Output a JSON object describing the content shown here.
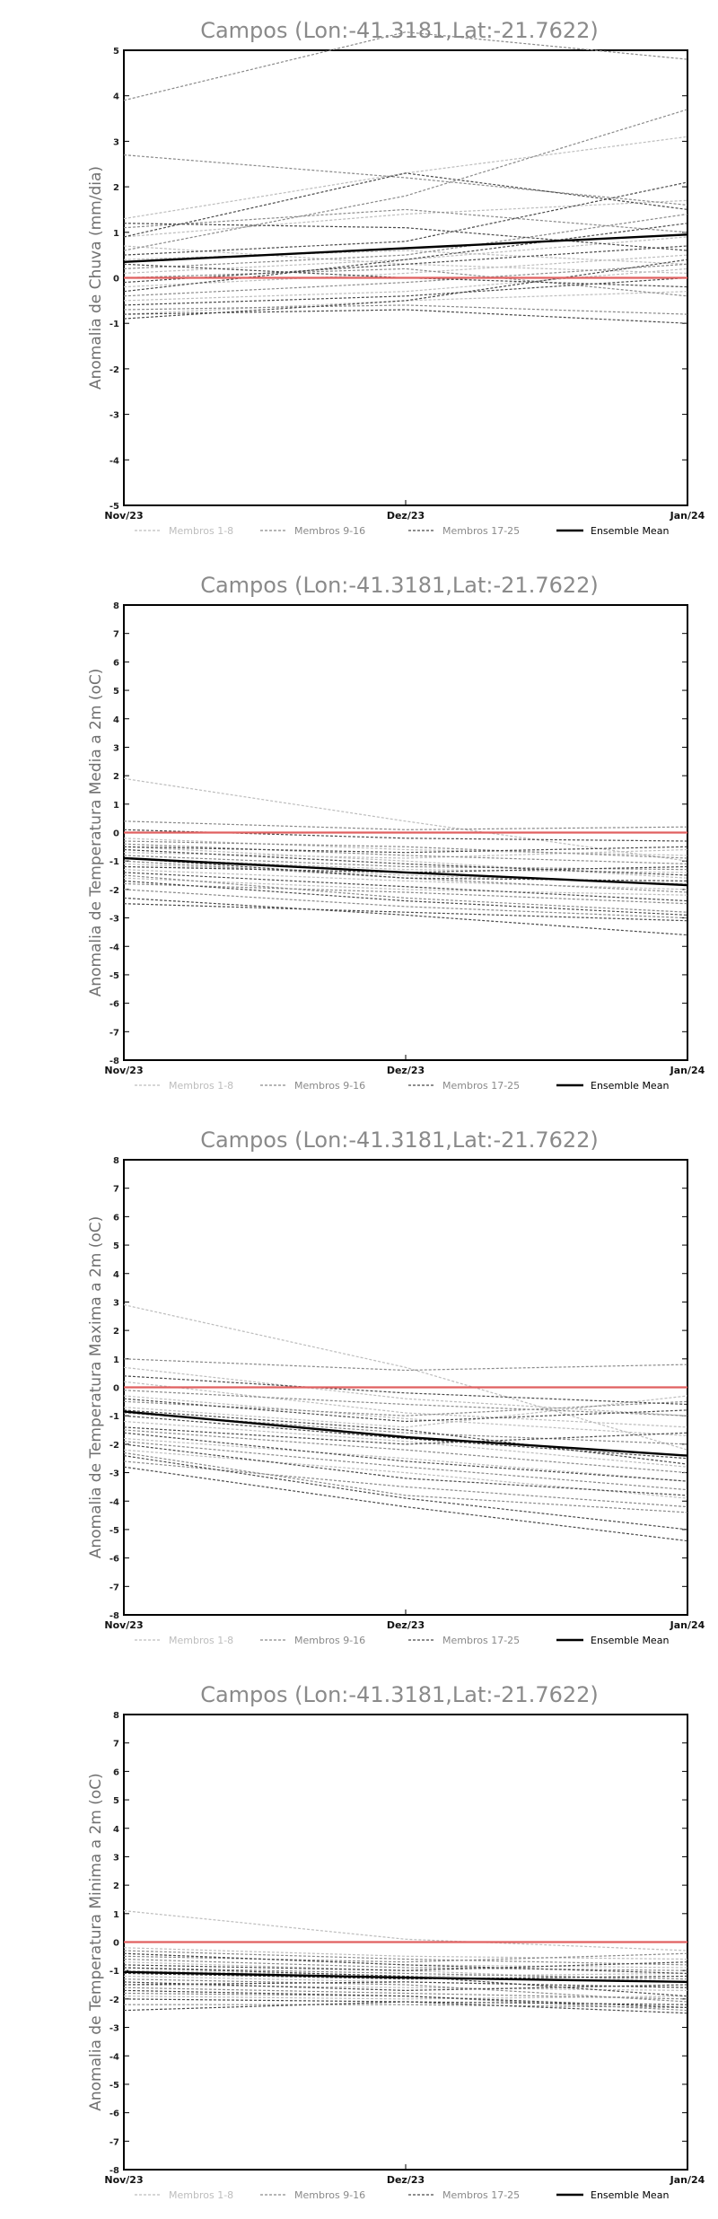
{
  "figure": {
    "colors": {
      "members_1_8": "#bdbdbd",
      "members_9_16": "#8a8a8a",
      "members_17_25": "#4a4a4a",
      "ensemble_mean": "#000000",
      "zero_line": "#e06060"
    }
  },
  "chart_data": [
    {
      "type": "line",
      "title": "Campos (Lon:-41.3181,Lat:-21.7622)",
      "xlabel": "",
      "ylabel": "Anomalia de Chuva (mm/dia)",
      "x": [
        "Nov/23",
        "Dez/23",
        "Jan/24"
      ],
      "ylim": [
        -5,
        5
      ],
      "yticks": [
        -5,
        -4,
        -3,
        -2,
        -1,
        0,
        1,
        2,
        3,
        4,
        5
      ],
      "legend": [
        "Membros 1-8",
        "Membros 9-16",
        "Membros 17-25",
        "Ensemble Mean"
      ],
      "reference_line": 0,
      "series": [
        {
          "name": "Membro 1",
          "group": 1,
          "values": [
            1.3,
            2.3,
            3.1
          ]
        },
        {
          "name": "Membro 2",
          "group": 1,
          "values": [
            0.9,
            1.4,
            1.7
          ]
        },
        {
          "name": "Membro 3",
          "group": 1,
          "values": [
            0.4,
            0.6,
            0.3
          ]
        },
        {
          "name": "Membro 4",
          "group": 1,
          "values": [
            -0.2,
            0.1,
            0.5
          ]
        },
        {
          "name": "Membro 5",
          "group": 1,
          "values": [
            -0.5,
            -0.3,
            0.2
          ]
        },
        {
          "name": "Membro 6",
          "group": 1,
          "values": [
            0.1,
            0.4,
            0.9
          ]
        },
        {
          "name": "Membro 7",
          "group": 1,
          "values": [
            -0.8,
            -0.5,
            -0.3
          ]
        },
        {
          "name": "Membro 8",
          "group": 1,
          "values": [
            0.7,
            0.3,
            0.1
          ]
        },
        {
          "name": "Membro 9",
          "group": 2,
          "values": [
            3.9,
            5.4,
            4.8
          ]
        },
        {
          "name": "Membro 10",
          "group": 2,
          "values": [
            2.7,
            2.2,
            1.6
          ]
        },
        {
          "name": "Membro 11",
          "group": 2,
          "values": [
            1.1,
            1.5,
            1.0
          ]
        },
        {
          "name": "Membro 12",
          "group": 2,
          "values": [
            0.6,
            1.8,
            3.7
          ]
        },
        {
          "name": "Membro 13",
          "group": 2,
          "values": [
            0.2,
            0.5,
            1.4
          ]
        },
        {
          "name": "Membro 14",
          "group": 2,
          "values": [
            -0.4,
            -0.1,
            0.3
          ]
        },
        {
          "name": "Membro 15",
          "group": 2,
          "values": [
            -0.7,
            -0.6,
            -0.8
          ]
        },
        {
          "name": "Membro 16",
          "group": 2,
          "values": [
            0.0,
            0.2,
            -0.4
          ]
        },
        {
          "name": "Membro 17",
          "group": 3,
          "values": [
            0.9,
            2.3,
            1.5
          ]
        },
        {
          "name": "Membro 18",
          "group": 3,
          "values": [
            1.2,
            1.1,
            0.6
          ]
        },
        {
          "name": "Membro 19",
          "group": 3,
          "values": [
            0.5,
            0.8,
            2.1
          ]
        },
        {
          "name": "Membro 20",
          "group": 3,
          "values": [
            -0.3,
            0.4,
            1.2
          ]
        },
        {
          "name": "Membro 21",
          "group": 3,
          "values": [
            -0.6,
            -0.4,
            0.0
          ]
        },
        {
          "name": "Membro 22",
          "group": 3,
          "values": [
            -0.8,
            -0.7,
            -1.0
          ]
        },
        {
          "name": "Membro 23",
          "group": 3,
          "values": [
            0.3,
            0.0,
            -0.2
          ]
        },
        {
          "name": "Membro 24",
          "group": 3,
          "values": [
            -0.1,
            0.3,
            0.7
          ]
        },
        {
          "name": "Membro 25",
          "group": 3,
          "values": [
            -0.9,
            -0.5,
            0.4
          ]
        },
        {
          "name": "Ensemble Mean",
          "group": 4,
          "values": [
            0.35,
            0.65,
            0.95
          ]
        }
      ]
    },
    {
      "type": "line",
      "title": "Campos (Lon:-41.3181,Lat:-21.7622)",
      "xlabel": "",
      "ylabel": "Anomalia de Temperatura Media a 2m (oC)",
      "x": [
        "Nov/23",
        "Dez/23",
        "Jan/24"
      ],
      "ylim": [
        -8,
        8
      ],
      "yticks": [
        -8,
        -7,
        -6,
        -5,
        -4,
        -3,
        -2,
        -1,
        0,
        1,
        2,
        3,
        4,
        5,
        6,
        7,
        8
      ],
      "legend": [
        "Membros 1-8",
        "Membros 9-16",
        "Membros 17-25",
        "Ensemble Mean"
      ],
      "reference_line": 0,
      "series": [
        {
          "name": "Membro 1",
          "group": 1,
          "values": [
            1.9,
            0.4,
            -1.0
          ]
        },
        {
          "name": "Membro 2",
          "group": 1,
          "values": [
            -0.2,
            -0.6,
            -0.8
          ]
        },
        {
          "name": "Membro 3",
          "group": 1,
          "values": [
            -0.9,
            -1.3,
            -1.4
          ]
        },
        {
          "name": "Membro 4",
          "group": 1,
          "values": [
            -1.3,
            -1.7,
            -2.0
          ]
        },
        {
          "name": "Membro 5",
          "group": 1,
          "values": [
            -0.5,
            -1.0,
            -1.6
          ]
        },
        {
          "name": "Membro 6",
          "group": 1,
          "values": [
            -1.6,
            -2.0,
            -2.2
          ]
        },
        {
          "name": "Membro 7",
          "group": 1,
          "values": [
            -0.7,
            -0.9,
            -0.6
          ]
        },
        {
          "name": "Membro 8",
          "group": 1,
          "values": [
            -1.1,
            -1.5,
            -1.8
          ]
        },
        {
          "name": "Membro 9",
          "group": 2,
          "values": [
            0.4,
            0.1,
            0.2
          ]
        },
        {
          "name": "Membro 10",
          "group": 2,
          "values": [
            -0.4,
            -0.8,
            -1.1
          ]
        },
        {
          "name": "Membro 11",
          "group": 2,
          "values": [
            -1.0,
            -1.6,
            -2.1
          ]
        },
        {
          "name": "Membro 12",
          "group": 2,
          "values": [
            -1.5,
            -2.3,
            -2.8
          ]
        },
        {
          "name": "Membro 13",
          "group": 2,
          "values": [
            -2.0,
            -2.6,
            -3.0
          ]
        },
        {
          "name": "Membro 14",
          "group": 2,
          "values": [
            -0.8,
            -1.2,
            -1.3
          ]
        },
        {
          "name": "Membro 15",
          "group": 2,
          "values": [
            -0.3,
            -0.5,
            -0.9
          ]
        },
        {
          "name": "Membro 16",
          "group": 2,
          "values": [
            -1.8,
            -2.1,
            -2.5
          ]
        },
        {
          "name": "Membro 17",
          "group": 3,
          "values": [
            -2.3,
            -2.9,
            -3.6
          ]
        },
        {
          "name": "Membro 18",
          "group": 3,
          "values": [
            -0.6,
            -1.1,
            -1.5
          ]
        },
        {
          "name": "Membro 19",
          "group": 3,
          "values": [
            -1.2,
            -1.4,
            -1.2
          ]
        },
        {
          "name": "Membro 20",
          "group": 3,
          "values": [
            -1.7,
            -2.4,
            -2.9
          ]
        },
        {
          "name": "Membro 21",
          "group": 3,
          "values": [
            -0.5,
            -0.7,
            -0.5
          ]
        },
        {
          "name": "Membro 22",
          "group": 3,
          "values": [
            -2.5,
            -2.8,
            -3.1
          ]
        },
        {
          "name": "Membro 23",
          "group": 3,
          "values": [
            -0.9,
            -1.6,
            -1.7
          ]
        },
        {
          "name": "Membro 24",
          "group": 3,
          "values": [
            -1.4,
            -1.9,
            -2.4
          ]
        },
        {
          "name": "Membro 25",
          "group": 3,
          "values": [
            0.1,
            -0.2,
            -0.3
          ]
        },
        {
          "name": "Ensemble Mean",
          "group": 4,
          "values": [
            -0.9,
            -1.4,
            -1.85
          ]
        }
      ]
    },
    {
      "type": "line",
      "title": "Campos (Lon:-41.3181,Lat:-21.7622)",
      "xlabel": "",
      "ylabel": "Anomalia de Temperatura Maxima a 2m (oC)",
      "x": [
        "Nov/23",
        "Dez/23",
        "Jan/24"
      ],
      "ylim": [
        -8,
        8
      ],
      "yticks": [
        -8,
        -7,
        -6,
        -5,
        -4,
        -3,
        -2,
        -1,
        0,
        1,
        2,
        3,
        4,
        5,
        6,
        7,
        8
      ],
      "legend": [
        "Membros 1-8",
        "Membros 9-16",
        "Membros 17-25",
        "Ensemble Mean"
      ],
      "reference_line": 0,
      "series": [
        {
          "name": "Membro 1",
          "group": 1,
          "values": [
            2.9,
            0.7,
            -2.2
          ]
        },
        {
          "name": "Membro 2",
          "group": 1,
          "values": [
            0.7,
            -0.4,
            -1.0
          ]
        },
        {
          "name": "Membro 3",
          "group": 1,
          "values": [
            -0.3,
            -1.1,
            -1.7
          ]
        },
        {
          "name": "Membro 4",
          "group": 1,
          "values": [
            -1.2,
            -1.9,
            -2.8
          ]
        },
        {
          "name": "Membro 5",
          "group": 1,
          "values": [
            -1.8,
            -2.5,
            -3.3
          ]
        },
        {
          "name": "Membro 6",
          "group": 1,
          "values": [
            -0.7,
            -1.4,
            -0.3
          ]
        },
        {
          "name": "Membro 7",
          "group": 1,
          "values": [
            -2.2,
            -3.0,
            -3.9
          ]
        },
        {
          "name": "Membro 8",
          "group": 1,
          "values": [
            0.2,
            -0.9,
            -1.4
          ]
        },
        {
          "name": "Membro 9",
          "group": 2,
          "values": [
            1.0,
            0.6,
            0.8
          ]
        },
        {
          "name": "Membro 10",
          "group": 2,
          "values": [
            -0.5,
            -1.0,
            -0.5
          ]
        },
        {
          "name": "Membro 11",
          "group": 2,
          "values": [
            -1.5,
            -2.2,
            -3.0
          ]
        },
        {
          "name": "Membro 12",
          "group": 2,
          "values": [
            -2.6,
            -3.5,
            -4.2
          ]
        },
        {
          "name": "Membro 13",
          "group": 2,
          "values": [
            -0.9,
            -1.6,
            -2.0
          ]
        },
        {
          "name": "Membro 14",
          "group": 2,
          "values": [
            -1.9,
            -2.8,
            -3.6
          ]
        },
        {
          "name": "Membro 15",
          "group": 2,
          "values": [
            -0.1,
            -0.6,
            -1.0
          ]
        },
        {
          "name": "Membro 16",
          "group": 2,
          "values": [
            -2.3,
            -3.8,
            -4.4
          ]
        },
        {
          "name": "Membro 17",
          "group": 3,
          "values": [
            -2.8,
            -4.2,
            -5.4
          ]
        },
        {
          "name": "Membro 18",
          "group": 3,
          "values": [
            -1.0,
            -1.8,
            -2.5
          ]
        },
        {
          "name": "Membro 19",
          "group": 3,
          "values": [
            -1.4,
            -2.0,
            -1.6
          ]
        },
        {
          "name": "Membro 20",
          "group": 3,
          "values": [
            -2.0,
            -3.2,
            -3.8
          ]
        },
        {
          "name": "Membro 21",
          "group": 3,
          "values": [
            -0.4,
            -1.2,
            -0.8
          ]
        },
        {
          "name": "Membro 22",
          "group": 3,
          "values": [
            -2.4,
            -3.9,
            -5.0
          ]
        },
        {
          "name": "Membro 23",
          "group": 3,
          "values": [
            0.4,
            -0.2,
            -0.6
          ]
        },
        {
          "name": "Membro 24",
          "group": 3,
          "values": [
            -1.6,
            -2.6,
            -3.3
          ]
        },
        {
          "name": "Membro 25",
          "group": 3,
          "values": [
            -0.8,
            -1.5,
            -2.7
          ]
        },
        {
          "name": "Ensemble Mean",
          "group": 4,
          "values": [
            -0.85,
            -1.75,
            -2.4
          ]
        }
      ]
    },
    {
      "type": "line",
      "title": "Campos (Lon:-41.3181,Lat:-21.7622)",
      "xlabel": "",
      "ylabel": "Anomalia de Temperatura Minima a 2m (oC)",
      "x": [
        "Nov/23",
        "Dez/23",
        "Jan/24"
      ],
      "ylim": [
        -8,
        8
      ],
      "yticks": [
        -8,
        -7,
        -6,
        -5,
        -4,
        -3,
        -2,
        -1,
        0,
        1,
        2,
        3,
        4,
        5,
        6,
        7,
        8
      ],
      "legend": [
        "Membros 1-8",
        "Membros 9-16",
        "Membros 17-25",
        "Ensemble Mean"
      ],
      "reference_line": 0,
      "series": [
        {
          "name": "Membro 1",
          "group": 1,
          "values": [
            1.1,
            0.1,
            -0.3
          ]
        },
        {
          "name": "Membro 2",
          "group": 1,
          "values": [
            -0.4,
            -0.8,
            -0.9
          ]
        },
        {
          "name": "Membro 3",
          "group": 1,
          "values": [
            -1.0,
            -1.2,
            -1.1
          ]
        },
        {
          "name": "Membro 4",
          "group": 1,
          "values": [
            -1.5,
            -1.6,
            -1.7
          ]
        },
        {
          "name": "Membro 5",
          "group": 1,
          "values": [
            -0.7,
            -1.0,
            -1.4
          ]
        },
        {
          "name": "Membro 6",
          "group": 1,
          "values": [
            -1.9,
            -2.0,
            -1.9
          ]
        },
        {
          "name": "Membro 7",
          "group": 1,
          "values": [
            -0.2,
            -0.5,
            -0.6
          ]
        },
        {
          "name": "Membro 8",
          "group": 1,
          "values": [
            -1.2,
            -1.4,
            -1.6
          ]
        },
        {
          "name": "Membro 9",
          "group": 2,
          "values": [
            -0.5,
            -0.7,
            -0.4
          ]
        },
        {
          "name": "Membro 10",
          "group": 2,
          "values": [
            -0.9,
            -1.1,
            -1.3
          ]
        },
        {
          "name": "Membro 11",
          "group": 2,
          "values": [
            -1.3,
            -1.5,
            -2.1
          ]
        },
        {
          "name": "Membro 12",
          "group": 2,
          "values": [
            -2.2,
            -2.2,
            -2.3
          ]
        },
        {
          "name": "Membro 13",
          "group": 2,
          "values": [
            -1.6,
            -1.8,
            -2.0
          ]
        },
        {
          "name": "Membro 14",
          "group": 2,
          "values": [
            -0.6,
            -0.9,
            -1.0
          ]
        },
        {
          "name": "Membro 15",
          "group": 2,
          "values": [
            -1.8,
            -1.9,
            -2.4
          ]
        },
        {
          "name": "Membro 16",
          "group": 2,
          "values": [
            -0.3,
            -0.6,
            -0.8
          ]
        },
        {
          "name": "Membro 17",
          "group": 3,
          "values": [
            -2.4,
            -2.1,
            -2.5
          ]
        },
        {
          "name": "Membro 18",
          "group": 3,
          "values": [
            -1.1,
            -1.3,
            -1.2
          ]
        },
        {
          "name": "Membro 19",
          "group": 3,
          "values": [
            -0.8,
            -1.0,
            -0.7
          ]
        },
        {
          "name": "Membro 20",
          "group": 3,
          "values": [
            -1.4,
            -1.7,
            -1.5
          ]
        },
        {
          "name": "Membro 21",
          "group": 3,
          "values": [
            -2.0,
            -2.1,
            -2.2
          ]
        },
        {
          "name": "Membro 22",
          "group": 3,
          "values": [
            -0.9,
            -1.2,
            -1.9
          ]
        },
        {
          "name": "Membro 23",
          "group": 3,
          "values": [
            -1.7,
            -1.9,
            -2.3
          ]
        },
        {
          "name": "Membro 24",
          "group": 3,
          "values": [
            -0.4,
            -0.8,
            -1.1
          ]
        },
        {
          "name": "Membro 25",
          "group": 3,
          "values": [
            -1.5,
            -1.4,
            -1.6
          ]
        },
        {
          "name": "Ensemble Mean",
          "group": 4,
          "values": [
            -1.05,
            -1.25,
            -1.4
          ]
        }
      ]
    }
  ]
}
